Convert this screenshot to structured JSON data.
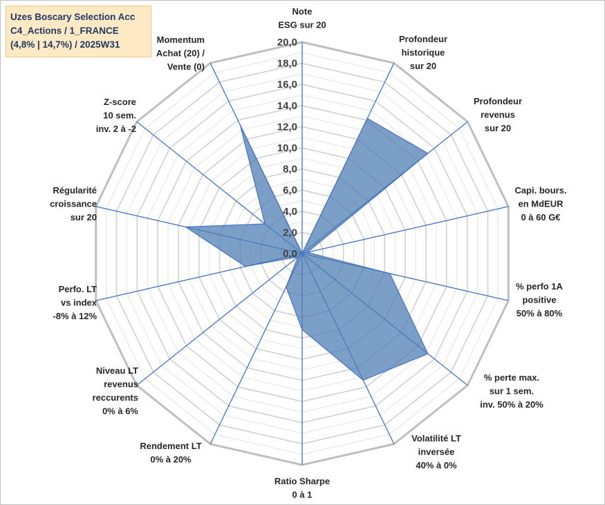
{
  "title": {
    "line1": "Uzes Boscary Selection Acc",
    "line2": "C4_Actions / 1_FRANCE",
    "line3": "(4,8% | 14,7%) / 2025W31"
  },
  "colors": {
    "fill": "#4f7fb3",
    "stroke": "#4472c4",
    "grid": "#c8c8c8",
    "spoke": "#4472c4"
  },
  "chart_data": {
    "type": "radar",
    "rmin": 0,
    "rmax": 20,
    "ticks": [
      "0,0",
      "2,0",
      "4,0",
      "6,0",
      "8,0",
      "10,0",
      "12,0",
      "14,0",
      "16,0",
      "18,0",
      "20,0"
    ],
    "axes": [
      {
        "label": [
          "Note",
          "ESG sur 20"
        ],
        "value": 0
      },
      {
        "label": [
          "Profondeur",
          "historique",
          "sur 20"
        ],
        "value": 14.2
      },
      {
        "label": [
          "Profondeur",
          "revenus",
          "sur 20"
        ],
        "value": 15.2
      },
      {
        "label": [
          "Capi. bours.",
          "en MdEUR",
          "0 à 60 G€"
        ],
        "value": 0.5
      },
      {
        "label": [
          "% perfo 1A",
          "positive",
          "50% à 80%"
        ],
        "value": 8.5
      },
      {
        "label": [
          "% perte max.",
          "sur 1 sem.",
          "inv. 50% à 20%"
        ],
        "value": 15.2
      },
      {
        "label": [
          "Volatilité LT",
          "inversée",
          "40% à 0%"
        ],
        "value": 13.3
      },
      {
        "label": [
          "Ratio Sharpe",
          "0 à 1"
        ],
        "value": 7.2
      },
      {
        "label": [
          "Rendement LT",
          "0% à 20%"
        ],
        "value": 3.5
      },
      {
        "label": [
          "Niveau LT",
          "revenus",
          "reccurents",
          "0% à 6%"
        ],
        "value": 0.5
      },
      {
        "label": [
          "Perfo. LT",
          "vs index",
          "-8% à 12%"
        ],
        "value": 5.5
      },
      {
        "label": [
          "Régularité",
          "croissance",
          "sur 20"
        ],
        "value": 11.3
      },
      {
        "label": [
          "Z-score",
          "10 sem.",
          "inv. 2 à -2"
        ],
        "value": 4.5
      },
      {
        "label": [
          "Momentum",
          "Achat (20) /",
          "Vente (0)"
        ],
        "value": 13.5
      }
    ]
  }
}
